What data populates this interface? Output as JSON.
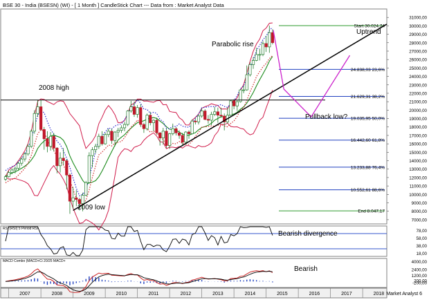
{
  "title": "BSE 30 - India (BSESN) (WI) - [ 1 Month ] CandleStick Chart --- Data from : Market Analyst Data",
  "watermark": "Market Analyst 6",
  "chart_data": [
    {
      "type": "candlestick",
      "ylim": [
        6500,
        32000
      ],
      "yticks": [
        7000,
        8000,
        9000,
        10000,
        11000,
        12000,
        13000,
        14000,
        15000,
        16000,
        17000,
        18000,
        19000,
        20000,
        21000,
        22000,
        23000,
        24000,
        25000,
        26000,
        27000,
        28000,
        29000,
        30000,
        31000
      ],
      "ytick_labels": [
        "7000,00",
        "8000,00",
        "9000,00",
        "10000,00",
        "11000,00",
        "12000,00",
        "13000,00",
        "14000,00",
        "15000,00",
        "16000,00",
        "17000,00",
        "18000,00",
        "19000,00",
        "20000,00",
        "21000,00",
        "22000,00",
        "23000,00",
        "24000,00",
        "25000,00",
        "26000,00",
        "27000,00",
        "28000,00",
        "29000,00",
        "30000,00",
        "31000,00"
      ],
      "xlim": [
        2006.75,
        2018.75
      ],
      "x_labels": [
        "2007",
        "2008",
        "2009",
        "2010",
        "2011",
        "2012",
        "2013",
        "2014",
        "2015",
        "2016",
        "2017",
        "2018"
      ],
      "annotations": [
        "Parabolic rise",
        "Uptrend",
        "2008 high",
        "2009 low",
        "Pullback low?"
      ],
      "horizontal_line": {
        "label": "2008 high",
        "y": 21200
      },
      "fibonacci_levels": [
        {
          "label": "Start 30.024,74",
          "value": 30024.74,
          "color": "#2e9a2e"
        },
        {
          "label": "24.838,03 23,6%",
          "value": 24838.03,
          "color": "#1f3fbf"
        },
        {
          "label": "21.629,31 38,2%",
          "value": 21629.31,
          "color": "#1f3fbf"
        },
        {
          "label": "19.035,95 50,0%",
          "value": 19035.95,
          "color": "#1f3fbf"
        },
        {
          "label": "16.442,60 61,8%",
          "value": 16442.6,
          "color": "#1f3fbf"
        },
        {
          "label": "13.233,88 76,4%",
          "value": 13233.88,
          "color": "#1f3fbf"
        },
        {
          "label": "10.552,61 88,6%",
          "value": 10552.61,
          "color": "#1f3fbf"
        },
        {
          "label": "End 8.047,17",
          "value": 8047.17,
          "color": "#2e9a2e"
        }
      ],
      "trendline": {
        "x": [
          2009.0,
          2018.75
        ],
        "y": [
          8100,
          30200
        ],
        "color": "#000000"
      },
      "projection": {
        "x": [
          2015.22,
          2015.55,
          2016.4,
          2017.6
        ],
        "y": [
          29500,
          22500,
          19200,
          26500
        ],
        "color": "#cc22cc"
      },
      "candles": [
        {
          "t": 2006.9,
          "o": 11800,
          "h": 12300,
          "l": 11600,
          "c": 12100
        },
        {
          "t": 2007.0,
          "o": 12100,
          "h": 12800,
          "l": 12000,
          "c": 12600
        },
        {
          "t": 2007.1,
          "o": 12600,
          "h": 13100,
          "l": 12400,
          "c": 12900
        },
        {
          "t": 2007.2,
          "o": 12900,
          "h": 13300,
          "l": 12500,
          "c": 13100
        },
        {
          "t": 2007.3,
          "o": 13100,
          "h": 13900,
          "l": 12800,
          "c": 13700
        },
        {
          "t": 2007.4,
          "o": 13700,
          "h": 14400,
          "l": 13400,
          "c": 14200
        },
        {
          "t": 2007.5,
          "o": 14200,
          "h": 15000,
          "l": 13900,
          "c": 14800
        },
        {
          "t": 2007.6,
          "o": 14800,
          "h": 16000,
          "l": 14600,
          "c": 15700
        },
        {
          "t": 2007.7,
          "o": 15700,
          "h": 17700,
          "l": 15500,
          "c": 17500
        },
        {
          "t": 2007.8,
          "o": 17500,
          "h": 20000,
          "l": 17200,
          "c": 19600
        },
        {
          "t": 2007.9,
          "o": 19600,
          "h": 21200,
          "l": 19200,
          "c": 20400
        },
        {
          "t": 2008.0,
          "o": 20400,
          "h": 21200,
          "l": 17600,
          "c": 17700
        },
        {
          "t": 2008.1,
          "o": 17700,
          "h": 18000,
          "l": 15300,
          "c": 16600
        },
        {
          "t": 2008.2,
          "o": 16600,
          "h": 17500,
          "l": 15000,
          "c": 15700
        },
        {
          "t": 2008.3,
          "o": 15700,
          "h": 17400,
          "l": 15200,
          "c": 16900
        },
        {
          "t": 2008.4,
          "o": 16900,
          "h": 17300,
          "l": 15100,
          "c": 15500
        },
        {
          "t": 2008.5,
          "o": 15500,
          "h": 15600,
          "l": 12500,
          "c": 13400
        },
        {
          "t": 2008.6,
          "o": 13400,
          "h": 15000,
          "l": 12600,
          "c": 14300
        },
        {
          "t": 2008.7,
          "o": 14300,
          "h": 15500,
          "l": 13500,
          "c": 14000
        },
        {
          "t": 2008.8,
          "o": 14000,
          "h": 14200,
          "l": 10600,
          "c": 12300
        },
        {
          "t": 2008.9,
          "o": 12300,
          "h": 12500,
          "l": 7700,
          "c": 9200
        },
        {
          "t": 2009.0,
          "o": 9200,
          "h": 10900,
          "l": 8300,
          "c": 9600
        },
        {
          "t": 2009.1,
          "o": 9600,
          "h": 10500,
          "l": 8600,
          "c": 9400
        },
        {
          "t": 2009.2,
          "o": 9400,
          "h": 9600,
          "l": 8100,
          "c": 8900
        },
        {
          "t": 2009.3,
          "o": 8900,
          "h": 10200,
          "l": 8000,
          "c": 9900
        },
        {
          "t": 2009.4,
          "o": 9900,
          "h": 11600,
          "l": 9800,
          "c": 11400
        },
        {
          "t": 2009.5,
          "o": 11400,
          "h": 15000,
          "l": 11300,
          "c": 14600
        },
        {
          "t": 2009.6,
          "o": 14600,
          "h": 15600,
          "l": 13200,
          "c": 15300
        },
        {
          "t": 2009.7,
          "o": 15300,
          "h": 16000,
          "l": 14900,
          "c": 15700
        },
        {
          "t": 2009.8,
          "o": 15700,
          "h": 17200,
          "l": 15400,
          "c": 16900
        },
        {
          "t": 2009.9,
          "o": 16900,
          "h": 17500,
          "l": 15800,
          "c": 16000
        },
        {
          "t": 2010.0,
          "o": 16000,
          "h": 17300,
          "l": 15900,
          "c": 17100
        },
        {
          "t": 2010.1,
          "o": 17100,
          "h": 17800,
          "l": 16800,
          "c": 17500
        },
        {
          "t": 2010.2,
          "o": 17500,
          "h": 17800,
          "l": 16000,
          "c": 16400
        },
        {
          "t": 2010.3,
          "o": 16400,
          "h": 17500,
          "l": 15700,
          "c": 17400
        },
        {
          "t": 2010.4,
          "o": 17400,
          "h": 17900,
          "l": 16800,
          "c": 17600
        },
        {
          "t": 2010.5,
          "o": 17600,
          "h": 18200,
          "l": 17300,
          "c": 17900
        },
        {
          "t": 2010.6,
          "o": 17900,
          "h": 18600,
          "l": 17500,
          "c": 18300
        },
        {
          "t": 2010.7,
          "o": 18300,
          "h": 20000,
          "l": 18100,
          "c": 19900
        },
        {
          "t": 2010.8,
          "o": 19900,
          "h": 21100,
          "l": 19700,
          "c": 20400
        },
        {
          "t": 2010.9,
          "o": 20400,
          "h": 21000,
          "l": 19200,
          "c": 19500
        },
        {
          "t": 2011.0,
          "o": 19500,
          "h": 20600,
          "l": 19100,
          "c": 20300
        },
        {
          "t": 2011.1,
          "o": 20300,
          "h": 20700,
          "l": 18000,
          "c": 18300
        },
        {
          "t": 2011.2,
          "o": 18300,
          "h": 18500,
          "l": 17300,
          "c": 17800
        },
        {
          "t": 2011.3,
          "o": 17800,
          "h": 19600,
          "l": 17600,
          "c": 19400
        },
        {
          "t": 2011.4,
          "o": 19400,
          "h": 19800,
          "l": 18200,
          "c": 18500
        },
        {
          "t": 2011.5,
          "o": 18500,
          "h": 18900,
          "l": 17500,
          "c": 18800
        },
        {
          "t": 2011.6,
          "o": 18800,
          "h": 19100,
          "l": 17100,
          "c": 17300
        },
        {
          "t": 2011.7,
          "o": 17300,
          "h": 17400,
          "l": 15800,
          "c": 16700
        },
        {
          "t": 2011.8,
          "o": 16700,
          "h": 17900,
          "l": 15900,
          "c": 17500
        },
        {
          "t": 2011.9,
          "o": 17500,
          "h": 17800,
          "l": 15500,
          "c": 15800
        },
        {
          "t": 2012.0,
          "o": 15800,
          "h": 17300,
          "l": 15400,
          "c": 17200
        },
        {
          "t": 2012.1,
          "o": 17200,
          "h": 18400,
          "l": 17000,
          "c": 17800
        },
        {
          "t": 2012.2,
          "o": 17800,
          "h": 18000,
          "l": 17000,
          "c": 17300
        },
        {
          "t": 2012.3,
          "o": 17300,
          "h": 17600,
          "l": 16600,
          "c": 17000
        },
        {
          "t": 2012.4,
          "o": 17000,
          "h": 17300,
          "l": 15800,
          "c": 16200
        },
        {
          "t": 2012.5,
          "o": 16200,
          "h": 17500,
          "l": 15900,
          "c": 17400
        },
        {
          "t": 2012.6,
          "o": 17400,
          "h": 17600,
          "l": 16600,
          "c": 17200
        },
        {
          "t": 2012.7,
          "o": 17200,
          "h": 18900,
          "l": 17100,
          "c": 18700
        },
        {
          "t": 2012.8,
          "o": 18700,
          "h": 19000,
          "l": 18300,
          "c": 18600
        },
        {
          "t": 2012.9,
          "o": 18600,
          "h": 19500,
          "l": 18300,
          "c": 19300
        },
        {
          "t": 2013.0,
          "o": 19300,
          "h": 20200,
          "l": 19100,
          "c": 19900
        },
        {
          "t": 2013.1,
          "o": 19900,
          "h": 20100,
          "l": 18800,
          "c": 18900
        },
        {
          "t": 2013.2,
          "o": 18900,
          "h": 19400,
          "l": 18400,
          "c": 18800
        },
        {
          "t": 2013.3,
          "o": 18800,
          "h": 19800,
          "l": 18200,
          "c": 19500
        },
        {
          "t": 2013.4,
          "o": 19500,
          "h": 20400,
          "l": 19300,
          "c": 19800
        },
        {
          "t": 2013.5,
          "o": 19800,
          "h": 20300,
          "l": 18500,
          "c": 19400
        },
        {
          "t": 2013.6,
          "o": 19400,
          "h": 20300,
          "l": 19100,
          "c": 19300
        },
        {
          "t": 2013.7,
          "o": 19300,
          "h": 19600,
          "l": 17600,
          "c": 18600
        },
        {
          "t": 2013.8,
          "o": 18600,
          "h": 20300,
          "l": 18400,
          "c": 19400
        },
        {
          "t": 2013.9,
          "o": 19400,
          "h": 21200,
          "l": 19300,
          "c": 21100
        },
        {
          "t": 2014.0,
          "o": 21100,
          "h": 21300,
          "l": 20100,
          "c": 20500
        },
        {
          "t": 2014.1,
          "o": 20500,
          "h": 21200,
          "l": 19900,
          "c": 21000
        },
        {
          "t": 2014.2,
          "o": 21000,
          "h": 22500,
          "l": 20900,
          "c": 22400
        },
        {
          "t": 2014.3,
          "o": 22400,
          "h": 22900,
          "l": 22000,
          "c": 22400
        },
        {
          "t": 2014.4,
          "o": 22400,
          "h": 25300,
          "l": 22300,
          "c": 24200
        },
        {
          "t": 2014.5,
          "o": 24200,
          "h": 25700,
          "l": 24000,
          "c": 25400
        },
        {
          "t": 2014.6,
          "o": 25400,
          "h": 26300,
          "l": 24900,
          "c": 25900
        },
        {
          "t": 2014.7,
          "o": 25900,
          "h": 27400,
          "l": 25800,
          "c": 26600
        },
        {
          "t": 2014.8,
          "o": 26600,
          "h": 27300,
          "l": 25900,
          "c": 26600
        },
        {
          "t": 2014.9,
          "o": 26600,
          "h": 28200,
          "l": 26400,
          "c": 27900
        },
        {
          "t": 2015.0,
          "o": 27900,
          "h": 28800,
          "l": 26900,
          "c": 27500
        },
        {
          "t": 2015.1,
          "o": 27500,
          "h": 30024,
          "l": 26800,
          "c": 29200
        },
        {
          "t": 2015.2,
          "o": 29200,
          "h": 29600,
          "l": 27800,
          "c": 28000
        }
      ]
    },
    {
      "type": "line",
      "title": "RSI (RSI) 5 Period RSI",
      "ylim": [
        10,
        90
      ],
      "ytick_labels": [
        "78,00",
        "58,00",
        "38,00",
        "18,00"
      ],
      "yticks": [
        78,
        58,
        38,
        18
      ],
      "reference_lines": [
        70,
        30
      ],
      "annotations": [
        "Bearish divergence"
      ]
    },
    {
      "type": "line",
      "title": "MACD Combo (MACD+Ci 20/25 MACD+",
      "ylim": [
        -1200,
        4600
      ],
      "ytick_labels": [
        "4000,00",
        "2400,00",
        "1200,00",
        "200,00",
        "-200,00"
      ],
      "yticks": [
        4000,
        2400,
        1200,
        200,
        -200
      ],
      "annotations": [
        "Bearish"
      ]
    }
  ]
}
